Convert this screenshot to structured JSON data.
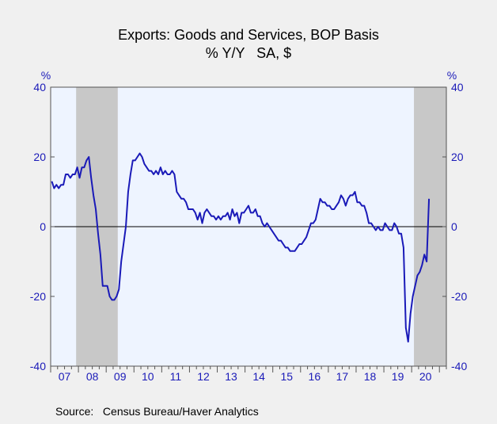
{
  "chart_data": {
    "type": "line",
    "title": "Exports: Goods and Services, BOP Basis",
    "subtitle": "% Y/Y   SA, $",
    "y_unit_left": "%",
    "y_unit_right": "%",
    "ylim": [
      -40,
      40
    ],
    "y_ticks": [
      40,
      20,
      0,
      -20,
      -40
    ],
    "x_tick_labels": [
      "07",
      "08",
      "09",
      "10",
      "11",
      "12",
      "13",
      "14",
      "15",
      "16",
      "17",
      "18",
      "19",
      "20"
    ],
    "x_start_year": 2007,
    "x_range_years": [
      2007.0,
      2021.25
    ],
    "recessions": [
      [
        2007.917,
        2009.417
      ],
      [
        2020.083,
        2021.25
      ]
    ],
    "colors": {
      "series": "#1a1ab8",
      "plot_background": "#eef4ff",
      "recession": "#c8c8c8",
      "axis_text": "#1a1ab8",
      "title_text": "#000000",
      "zero_line": "#000000"
    },
    "grid": false,
    "legend": "none",
    "series": [
      {
        "monthly_start": "2007-01",
        "values": [
          13,
          11,
          12,
          11,
          12,
          12,
          15,
          15,
          14,
          15,
          15,
          17,
          14,
          17,
          17,
          19,
          20,
          14,
          9,
          5,
          -2,
          -8,
          -17,
          -17,
          -17,
          -20,
          -21,
          -21,
          -20,
          -18,
          -10,
          -5,
          0,
          10,
          15,
          19,
          19,
          20,
          21,
          20,
          18,
          17,
          16,
          16,
          15,
          16,
          15,
          17,
          15,
          16,
          15,
          15,
          16,
          15,
          10,
          9,
          8,
          8,
          7,
          5,
          5,
          5,
          4,
          2,
          4,
          1,
          4,
          5,
          4,
          3,
          3,
          2,
          3,
          2,
          3,
          3,
          4,
          2,
          5,
          3,
          4,
          1,
          4,
          4,
          5,
          6,
          4,
          4,
          5,
          3,
          3,
          1,
          0,
          1,
          0,
          -1,
          -2,
          -3,
          -4,
          -4,
          -5,
          -6,
          -6,
          -7,
          -7,
          -7,
          -6,
          -5,
          -5,
          -4,
          -3,
          -1,
          1,
          1,
          2,
          5,
          8,
          7,
          7,
          6,
          6,
          5,
          5,
          6,
          7,
          9,
          8,
          6,
          8,
          9,
          9,
          10,
          7,
          7,
          6,
          6,
          4,
          1,
          1,
          0,
          -1,
          0,
          -1,
          -1,
          1,
          0,
          -1,
          -1,
          1,
          0,
          -2,
          -2,
          -6,
          -29,
          -33,
          -25,
          -20,
          -17,
          -14,
          -13,
          -11,
          -8,
          -10,
          8
        ]
      }
    ],
    "source": "Source:   Census Bureau/Haver Analytics"
  }
}
